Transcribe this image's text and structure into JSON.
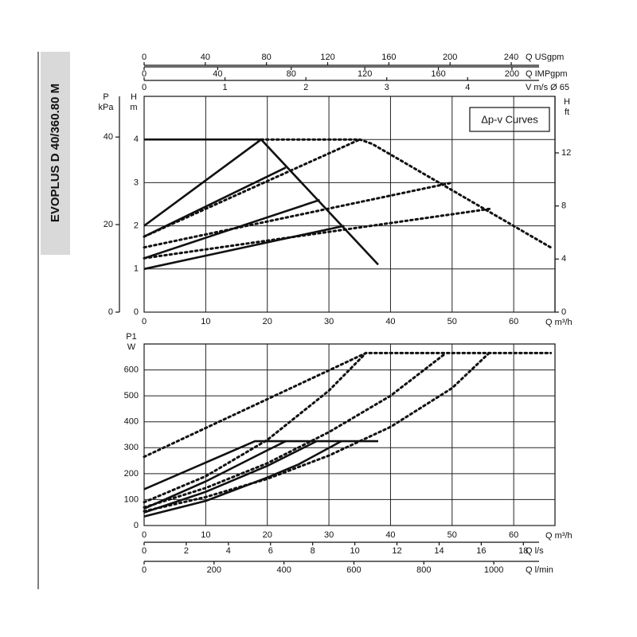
{
  "chart_data": [
    {
      "type": "line",
      "title": "EVOPLUS D 40/360.80 M",
      "annotation": "Δp-v Curves",
      "xlabel": "Q m³/h",
      "xlim": [
        0,
        66.7
      ],
      "xticks": [
        0,
        10,
        20,
        30,
        40,
        50,
        60
      ],
      "ylabel": [
        "H",
        "m"
      ],
      "ylim": [
        0,
        5
      ],
      "yticks": [
        0,
        1,
        2,
        3,
        4
      ],
      "grid": true,
      "extra_axes": [
        {
          "side": "left",
          "label": [
            "P",
            "kPa"
          ],
          "lim": [
            0,
            49.3
          ],
          "ticks": [
            0,
            20,
            40
          ]
        },
        {
          "side": "right",
          "label": [
            "H",
            "ft"
          ],
          "lim": [
            0,
            16.26
          ],
          "ticks": [
            0,
            4,
            8,
            12
          ]
        },
        {
          "side": "top",
          "label": "Q USgpm",
          "lim": [
            0,
            268.6
          ],
          "ticks": [
            0,
            40,
            80,
            120,
            160,
            200,
            240
          ]
        },
        {
          "side": "top",
          "label": "Q IMPgpm",
          "lim": [
            0,
            223.4
          ],
          "ticks": [
            0,
            40,
            80,
            120,
            160,
            200
          ]
        },
        {
          "side": "top",
          "label": "V m/s Ø 65",
          "lim": [
            0,
            5.08
          ],
          "ticks": [
            0,
            1,
            2,
            3,
            4
          ]
        }
      ],
      "series": [
        {
          "color": "#111111",
          "style": "solid",
          "x": [
            0,
            19,
            38
          ],
          "values": [
            4,
            4,
            1.1
          ]
        },
        {
          "color": "#111111",
          "style": "solid",
          "x": [
            0,
            19
          ],
          "values": [
            2,
            4
          ]
        },
        {
          "color": "#111111",
          "style": "solid",
          "x": [
            0,
            23
          ],
          "values": [
            1.75,
            3.35
          ]
        },
        {
          "color": "#111111",
          "style": "solid",
          "x": [
            0,
            28.5
          ],
          "values": [
            1.25,
            2.6
          ]
        },
        {
          "color": "#111111",
          "style": "solid",
          "x": [
            0,
            32.5
          ],
          "values": [
            1.0,
            2.0
          ]
        },
        {
          "color": "#111111",
          "style": "dotted",
          "x": [
            19,
            35,
            37,
            66
          ],
          "values": [
            4,
            4,
            3.9,
            1.5
          ]
        },
        {
          "color": "#111111",
          "style": "dotted",
          "x": [
            0,
            35
          ],
          "values": [
            1.75,
            4
          ]
        },
        {
          "color": "#111111",
          "style": "dotted",
          "x": [
            0,
            50
          ],
          "values": [
            1.5,
            3.0
          ]
        },
        {
          "color": "#111111",
          "style": "dotted",
          "x": [
            0,
            56.5
          ],
          "values": [
            1.25,
            2.4
          ]
        }
      ]
    },
    {
      "type": "line",
      "xlabel": "Q m³/h",
      "xlim": [
        0,
        66.7
      ],
      "xticks": [
        0,
        10,
        20,
        30,
        40,
        50,
        60
      ],
      "ylabel": [
        "P1",
        "W"
      ],
      "ylim": [
        0,
        700
      ],
      "yticks": [
        0,
        100,
        200,
        300,
        400,
        500,
        600
      ],
      "grid": true,
      "extra_axes": [
        {
          "side": "bottom",
          "label": "Q l/s",
          "lim": [
            0,
            19.5
          ],
          "ticks": [
            0,
            2,
            4,
            6,
            8,
            10,
            12,
            14,
            16,
            18
          ]
        },
        {
          "side": "bottom",
          "label": "Q l/min",
          "lim": [
            0,
            1175
          ],
          "ticks": [
            0,
            200,
            400,
            600,
            800,
            1000
          ]
        }
      ],
      "series": [
        {
          "color": "#111111",
          "style": "solid",
          "x": [
            0,
            18,
            38
          ],
          "values": [
            140,
            325,
            325
          ]
        },
        {
          "color": "#111111",
          "style": "solid",
          "x": [
            0,
            10,
            20,
            23
          ],
          "values": [
            65,
            170,
            290,
            325
          ]
        },
        {
          "color": "#111111",
          "style": "solid",
          "x": [
            0,
            10,
            20,
            28
          ],
          "values": [
            50,
            130,
            230,
            325
          ]
        },
        {
          "color": "#111111",
          "style": "solid",
          "x": [
            0,
            10,
            20,
            25,
            32
          ],
          "values": [
            35,
            95,
            185,
            235,
            325
          ]
        },
        {
          "color": "#111111",
          "style": "dotted",
          "x": [
            0,
            36,
            66
          ],
          "values": [
            265,
            665,
            665
          ]
        },
        {
          "color": "#111111",
          "style": "dotted",
          "x": [
            0,
            10,
            20,
            30,
            36
          ],
          "values": [
            90,
            190,
            330,
            520,
            665
          ]
        },
        {
          "color": "#111111",
          "style": "dotted",
          "x": [
            0,
            10,
            20,
            30,
            40,
            49
          ],
          "values": [
            70,
            145,
            240,
            360,
            500,
            665
          ]
        },
        {
          "color": "#111111",
          "style": "dotted",
          "x": [
            0,
            10,
            20,
            30,
            40,
            50,
            56
          ],
          "values": [
            55,
            110,
            180,
            270,
            380,
            530,
            665
          ]
        }
      ]
    }
  ]
}
